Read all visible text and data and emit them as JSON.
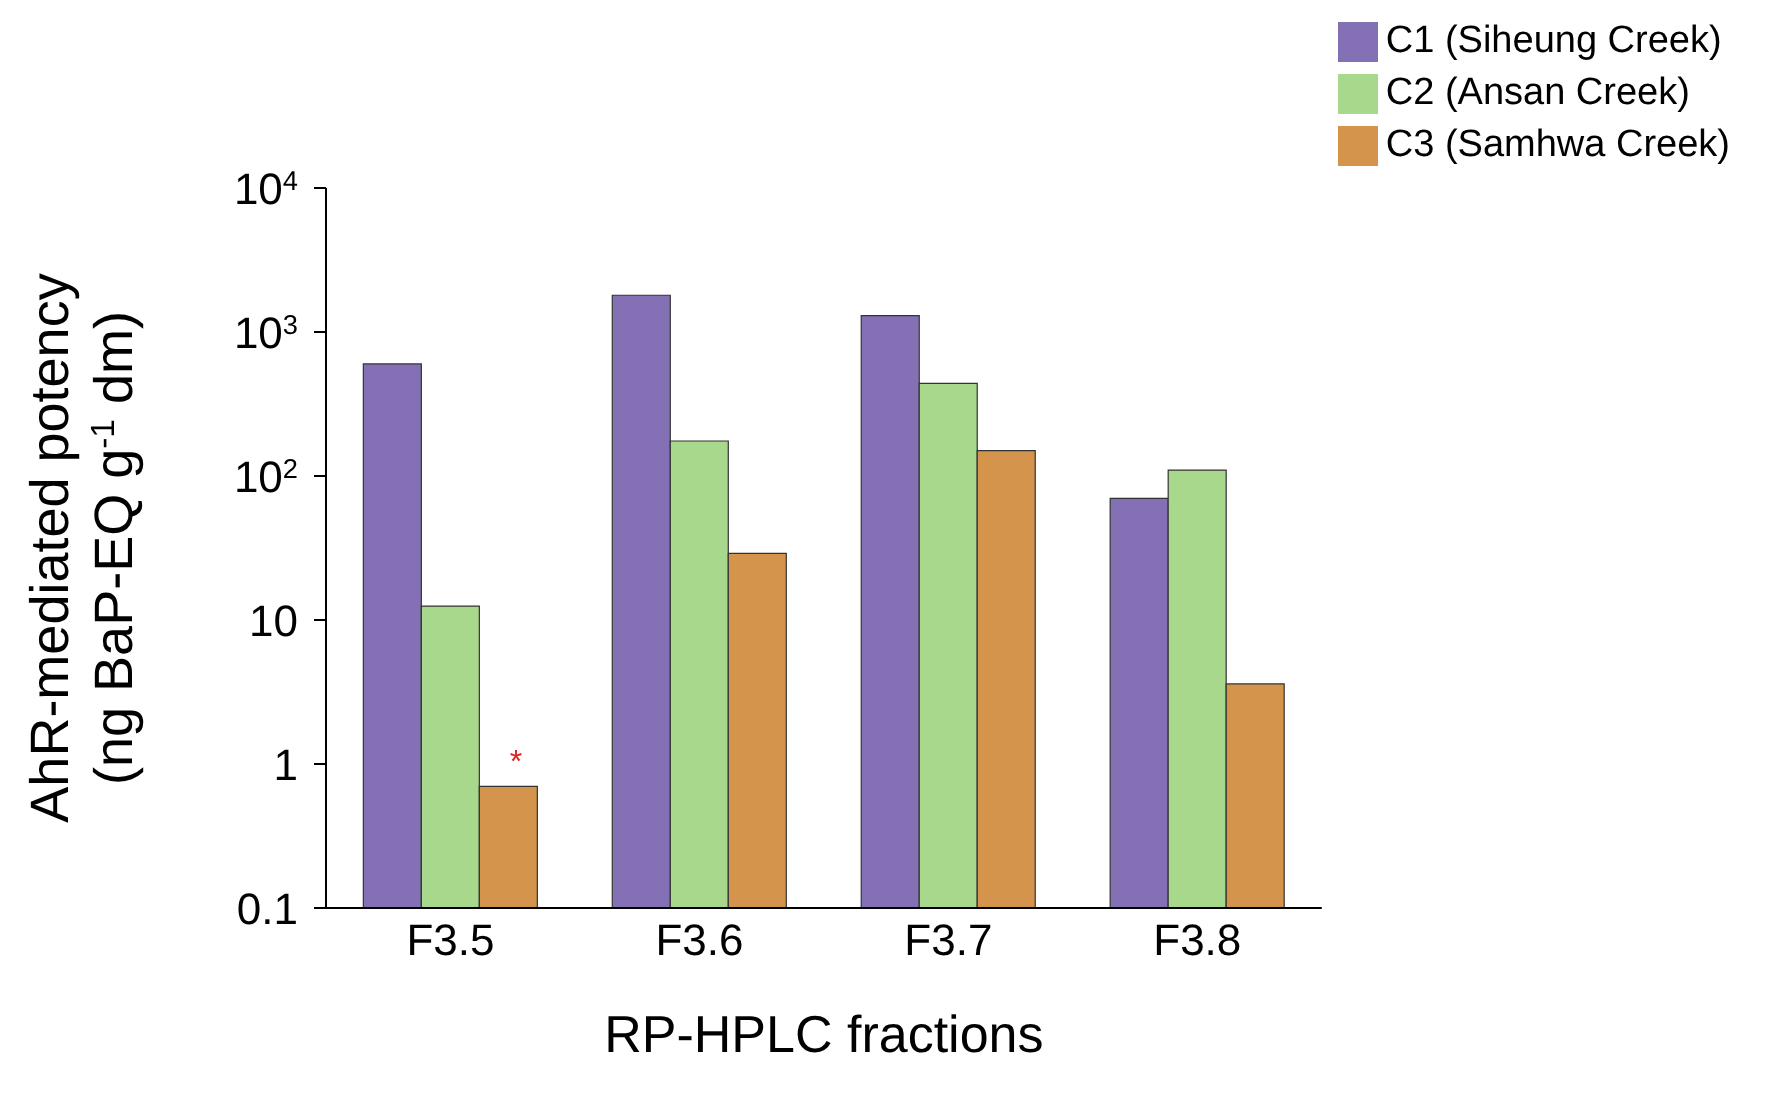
{
  "chart_data": {
    "type": "bar",
    "xlabel": "RP-HPLC fractions",
    "ylabel": "AhR-mediated potency\n(ng BaP-EQ g$^{-1}$ dm)",
    "categories": [
      "F3.5",
      "F3.6",
      "F3.7",
      "F3.8"
    ],
    "series": [
      {
        "name": "C1 (Siheung Creek)",
        "color": "#8470b4",
        "values": [
          600,
          1800,
          1300,
          70
        ]
      },
      {
        "name": "C2 (Ansan Creek)",
        "color": "#a8d88c",
        "values": [
          12.5,
          175,
          440,
          110
        ]
      },
      {
        "name": "C3 (Samhwa Creek)",
        "color": "#d4944c",
        "values": [
          0.7,
          29,
          150,
          3.6
        ]
      }
    ],
    "log": true,
    "ylim": [
      0.1,
      10000
    ],
    "yticks": [
      {
        "value": 0.1,
        "label": "0.1"
      },
      {
        "value": 1,
        "label": "1"
      },
      {
        "value": 10,
        "label": "10"
      },
      {
        "value": 100,
        "label": "10$^{2}$"
      },
      {
        "value": 1000,
        "label": "10$^{3}$"
      },
      {
        "value": 10000,
        "label": "10$^{4}$"
      }
    ],
    "grid": false,
    "legend": "top right",
    "annotations": [
      "*"
    ]
  }
}
